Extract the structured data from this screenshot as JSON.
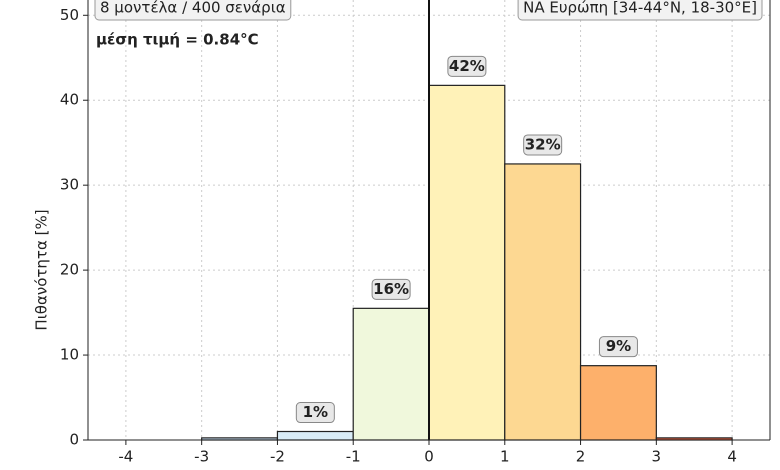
{
  "chart_data": {
    "type": "histogram",
    "ylabel": "Πιθανότητα [%]",
    "annotations": [
      "8 μοντέλα / 400 σενάρια",
      "ΝΑ Ευρώπη [34-44°N, 18-30°E]",
      "μέση τιμή = 0.84°C"
    ],
    "bins": [
      -4,
      -3,
      -2,
      -1,
      0,
      1,
      2,
      3,
      4
    ],
    "values": [
      0,
      0.25,
      1,
      15.5,
      41.75,
      32.5,
      8.75,
      0.25
    ],
    "value_labels": [
      null,
      null,
      "1%",
      "16%",
      "42%",
      "32%",
      "9%",
      null
    ],
    "colors": [
      "#c6dbef",
      "#c6dbef",
      "#d9ecf7",
      "#f0f8dc",
      "#fff2b8",
      "#fdd892",
      "#fdb06b",
      "#e0603f"
    ],
    "vline": 0,
    "xlim": [
      -4.5,
      4.5
    ],
    "ylim": [
      0,
      51.8
    ],
    "xticks": [
      -4,
      -3,
      -2,
      -1,
      0,
      1,
      2,
      3,
      4
    ],
    "yticks": [
      0,
      10,
      20,
      30,
      40,
      50
    ],
    "grid": true
  }
}
